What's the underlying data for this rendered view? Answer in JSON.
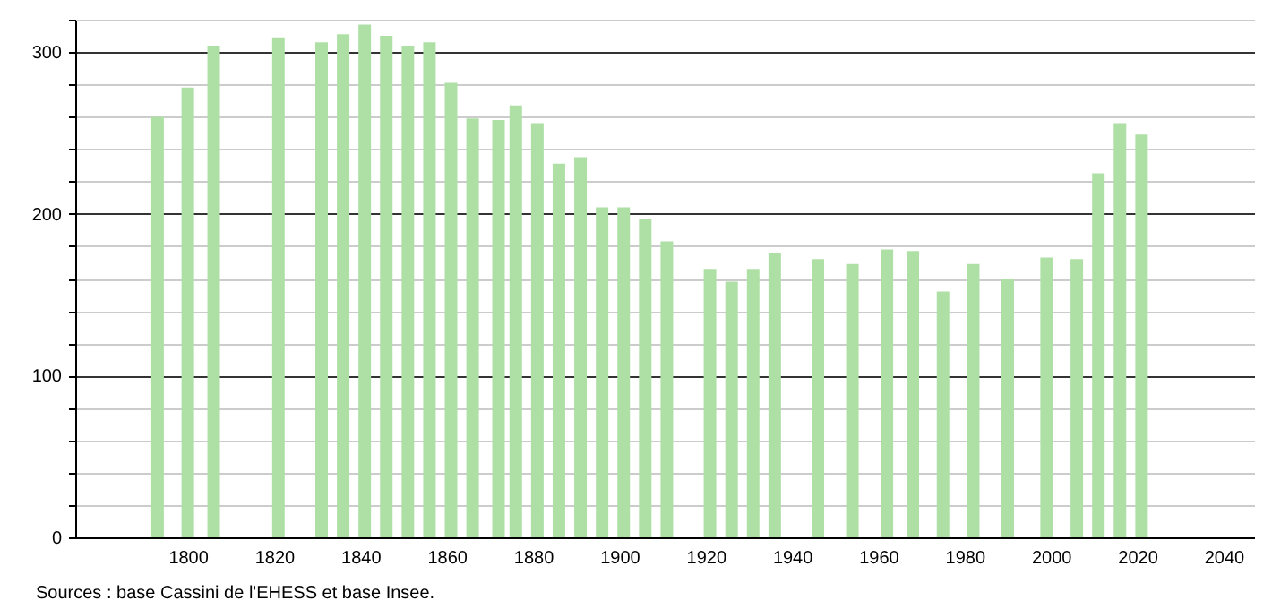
{
  "chart_data": {
    "type": "bar",
    "x": [
      1793,
      1800,
      1806,
      1821,
      1831,
      1836,
      1841,
      1846,
      1851,
      1856,
      1861,
      1866,
      1872,
      1876,
      1881,
      1886,
      1891,
      1896,
      1901,
      1906,
      1911,
      1921,
      1926,
      1931,
      1936,
      1946,
      1954,
      1962,
      1968,
      1975,
      1982,
      1990,
      1999,
      2006,
      2011,
      2016,
      2021
    ],
    "values": [
      260,
      278,
      304,
      309,
      306,
      311,
      317,
      310,
      304,
      306,
      281,
      259,
      258,
      267,
      256,
      231,
      235,
      204,
      204,
      197,
      183,
      166,
      158,
      166,
      176,
      172,
      169,
      178,
      177,
      152,
      169,
      160,
      173,
      172,
      225,
      256,
      249
    ],
    "color": "#aee0a6",
    "xlim": [
      1776,
      2045
    ],
    "xticks": [
      1800,
      1820,
      1840,
      1860,
      1880,
      1900,
      1920,
      1940,
      1960,
      1980,
      2000,
      2020,
      2040
    ],
    "ylim": [
      0,
      320
    ],
    "yticks": [
      0,
      {
        "value": 20,
        "label": null
      },
      {
        "value": 40,
        "label": null
      },
      {
        "value": 60,
        "label": null
      },
      {
        "value": 80,
        "label": null
      },
      100,
      {
        "value": 120,
        "label": null
      },
      {
        "value": 140,
        "label": null
      },
      {
        "value": 160,
        "label": null
      },
      {
        "value": 180,
        "label": null
      },
      200,
      {
        "value": 220,
        "label": null
      },
      {
        "value": 240,
        "label": null
      },
      {
        "value": 260,
        "label": null
      },
      {
        "value": 280,
        "label": null
      },
      300,
      {
        "value": 320,
        "label": null
      }
    ],
    "grid": "y",
    "annotations": [
      "Sources : base Cassini de l'EHESS et base Insee."
    ]
  }
}
